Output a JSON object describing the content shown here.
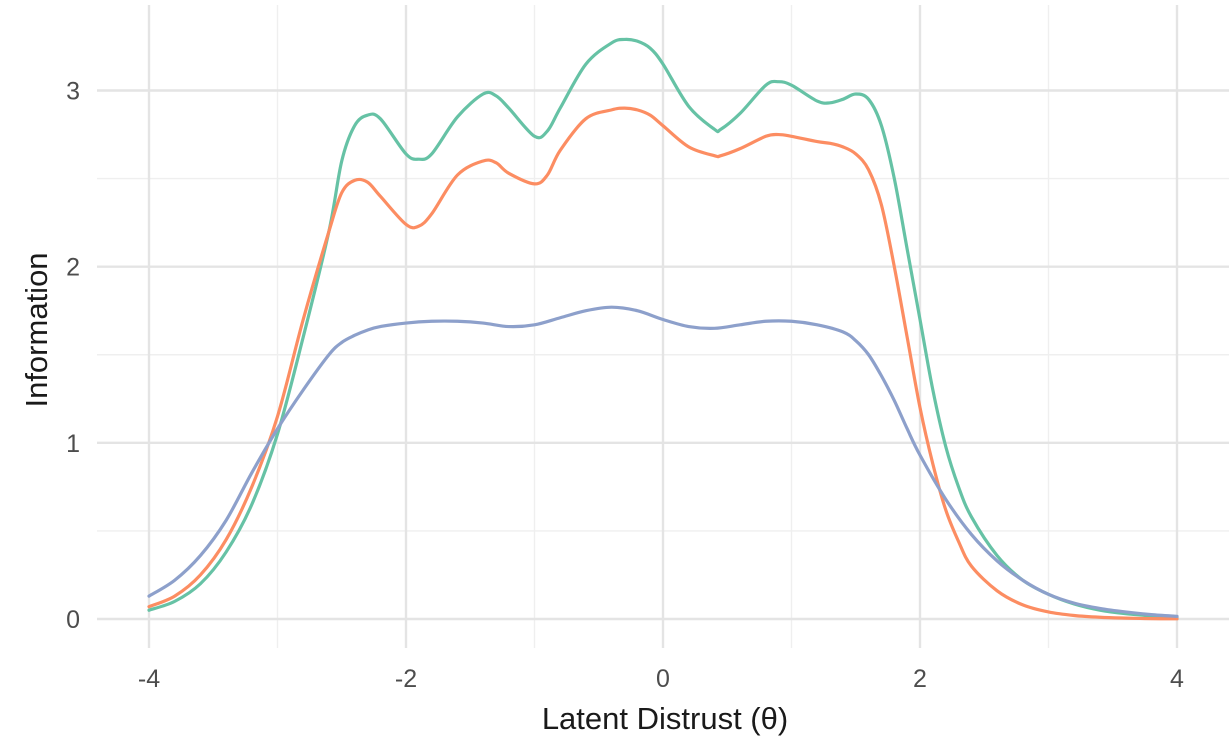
{
  "chart_data": {
    "type": "line",
    "title": "",
    "xlabel": "Latent Distrust (θ)",
    "ylabel": "Information",
    "xlim": [
      -4,
      4
    ],
    "ylim": [
      0,
      3.3
    ],
    "xticks": [
      -4,
      -2,
      0,
      2,
      4
    ],
    "xtick_labels": [
      "-4",
      "-2",
      "0",
      "2",
      "4"
    ],
    "yticks": [
      0,
      1,
      2,
      3
    ],
    "ytick_labels": [
      "0",
      "1",
      "2",
      "3"
    ],
    "grid": true,
    "legend": "none",
    "series": [
      {
        "color": "#66c2a5",
        "x": [
          -4.0,
          -3.8,
          -3.6,
          -3.4,
          -3.2,
          -3.0,
          -2.8,
          -2.6,
          -2.5,
          -2.4,
          -2.3,
          -2.2,
          -2.0,
          -1.9,
          -1.8,
          -1.6,
          -1.4,
          -1.3,
          -1.2,
          -1.0,
          -0.9,
          -0.8,
          -0.6,
          -0.4,
          -0.3,
          -0.2,
          -0.1,
          0.0,
          0.2,
          0.4,
          0.45,
          0.6,
          0.8,
          0.9,
          1.0,
          1.2,
          1.3,
          1.4,
          1.5,
          1.6,
          1.7,
          1.8,
          1.9,
          2.0,
          2.1,
          2.2,
          2.3,
          2.4,
          2.6,
          2.8,
          3.0,
          3.2,
          3.4,
          3.6,
          3.8,
          4.0
        ],
        "y": [
          0.05,
          0.1,
          0.2,
          0.38,
          0.65,
          1.05,
          1.6,
          2.2,
          2.6,
          2.8,
          2.86,
          2.84,
          2.64,
          2.61,
          2.64,
          2.85,
          2.98,
          2.97,
          2.9,
          2.74,
          2.77,
          2.9,
          3.15,
          3.27,
          3.29,
          3.28,
          3.24,
          3.15,
          2.91,
          2.78,
          2.78,
          2.87,
          3.03,
          3.05,
          3.03,
          2.94,
          2.93,
          2.95,
          2.98,
          2.95,
          2.8,
          2.5,
          2.1,
          1.7,
          1.3,
          0.98,
          0.75,
          0.58,
          0.36,
          0.22,
          0.14,
          0.085,
          0.05,
          0.03,
          0.018,
          0.01
        ]
      },
      {
        "color": "#fc8d62",
        "x": [
          -4.0,
          -3.8,
          -3.6,
          -3.4,
          -3.2,
          -3.0,
          -2.8,
          -2.6,
          -2.5,
          -2.4,
          -2.3,
          -2.2,
          -2.0,
          -1.9,
          -1.8,
          -1.6,
          -1.4,
          -1.3,
          -1.2,
          -1.0,
          -0.9,
          -0.8,
          -0.6,
          -0.4,
          -0.3,
          -0.2,
          -0.1,
          0.0,
          0.2,
          0.4,
          0.45,
          0.6,
          0.8,
          0.9,
          1.0,
          1.2,
          1.3,
          1.4,
          1.5,
          1.6,
          1.7,
          1.8,
          1.9,
          2.0,
          2.1,
          2.2,
          2.3,
          2.4,
          2.6,
          2.8,
          3.0,
          3.2,
          3.4,
          3.6,
          3.8,
          4.0
        ],
        "y": [
          0.07,
          0.13,
          0.25,
          0.45,
          0.75,
          1.15,
          1.7,
          2.2,
          2.42,
          2.49,
          2.48,
          2.4,
          2.24,
          2.23,
          2.3,
          2.52,
          2.6,
          2.59,
          2.53,
          2.47,
          2.52,
          2.66,
          2.84,
          2.89,
          2.9,
          2.89,
          2.86,
          2.8,
          2.68,
          2.63,
          2.63,
          2.67,
          2.74,
          2.75,
          2.74,
          2.71,
          2.7,
          2.68,
          2.64,
          2.55,
          2.35,
          2.0,
          1.6,
          1.2,
          0.88,
          0.62,
          0.44,
          0.3,
          0.16,
          0.08,
          0.04,
          0.02,
          0.01,
          0.005,
          0.002,
          0.001
        ]
      },
      {
        "color": "#8da0cb",
        "x": [
          -4.0,
          -3.8,
          -3.6,
          -3.4,
          -3.2,
          -3.0,
          -2.8,
          -2.6,
          -2.5,
          -2.4,
          -2.3,
          -2.2,
          -2.0,
          -1.8,
          -1.6,
          -1.4,
          -1.2,
          -1.0,
          -0.8,
          -0.6,
          -0.4,
          -0.2,
          0.0,
          0.2,
          0.4,
          0.6,
          0.8,
          1.0,
          1.2,
          1.4,
          1.5,
          1.6,
          1.7,
          1.8,
          1.9,
          2.0,
          2.2,
          2.4,
          2.6,
          2.8,
          3.0,
          3.2,
          3.4,
          3.6,
          3.8,
          4.0
        ],
        "y": [
          0.13,
          0.22,
          0.36,
          0.56,
          0.83,
          1.08,
          1.3,
          1.5,
          1.57,
          1.61,
          1.64,
          1.66,
          1.68,
          1.69,
          1.69,
          1.68,
          1.66,
          1.67,
          1.71,
          1.75,
          1.77,
          1.75,
          1.7,
          1.66,
          1.65,
          1.67,
          1.69,
          1.69,
          1.67,
          1.63,
          1.58,
          1.5,
          1.38,
          1.24,
          1.08,
          0.93,
          0.68,
          0.48,
          0.33,
          0.22,
          0.14,
          0.09,
          0.06,
          0.04,
          0.025,
          0.015
        ]
      }
    ]
  }
}
